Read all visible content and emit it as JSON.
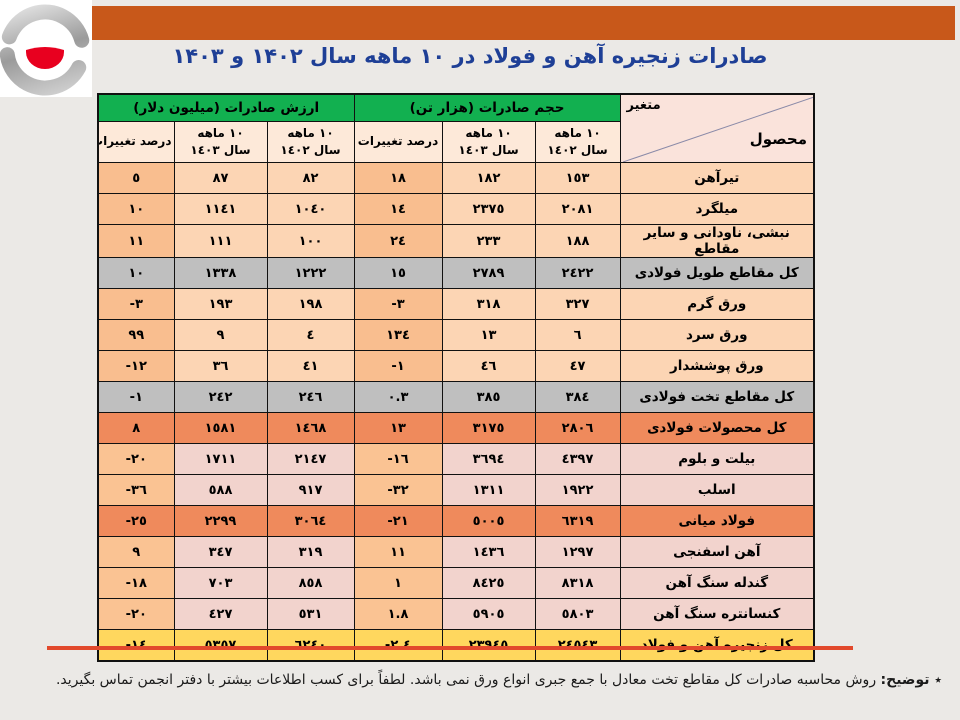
{
  "title": "صادرات زنجیره آهن و فولاد در ۱۰ ماهه سال ۱۴۰۲ و ۱۴۰۳",
  "table": {
    "corner": {
      "variable": "متغیر",
      "product": "محصول"
    },
    "groups": {
      "volume": "حجم صادرات (هزار تن)",
      "value": "ارزش صادرات (میلیون دلار)"
    },
    "subheaders": {
      "period": "١٠ ماهه",
      "y1402": "سال ١٤٠٢",
      "y1403": "سال ١٤٠٣",
      "pct": "درصد تغییرات"
    },
    "rows": [
      {
        "product": "تیرآهن",
        "style": "salmon",
        "v02": "١٥٣",
        "v03": "١٨٢",
        "vp": "١٨",
        "a02": "٨٢",
        "a03": "٨٧",
        "ap": "٥"
      },
      {
        "product": "میلگرد",
        "style": "salmon",
        "v02": "٢٠٨١",
        "v03": "٢٣٧٥",
        "vp": "١٤",
        "a02": "١٠٤٠",
        "a03": "١١٤١",
        "ap": "١٠"
      },
      {
        "product": "نبشی، ناودانی و سایر مقاطع",
        "style": "salmon",
        "v02": "١٨٨",
        "v03": "٢٣٣",
        "vp": "٢٤",
        "a02": "١٠٠",
        "a03": "١١١",
        "ap": "١١"
      },
      {
        "product": "کل مقاطع طویل فولادی",
        "style": "gray",
        "v02": "٢٤٢٢",
        "v03": "٢٧٨٩",
        "vp": "١٥",
        "a02": "١٢٢٢",
        "a03": "١٣٣٨",
        "ap": "١٠"
      },
      {
        "product": "ورق گرم",
        "style": "salmon",
        "v02": "٣٢٧",
        "v03": "٣١٨",
        "vp": "-٣",
        "a02": "١٩٨",
        "a03": "١٩٣",
        "ap": "-٣"
      },
      {
        "product": "ورق سرد",
        "style": "salmon",
        "v02": "٦",
        "v03": "١٣",
        "vp": "١٣٤",
        "a02": "٤",
        "a03": "٩",
        "ap": "٩٩"
      },
      {
        "product": "ورق پوششدار",
        "style": "salmon",
        "v02": "٤٧",
        "v03": "٤٦",
        "vp": "-١",
        "a02": "٤١",
        "a03": "٣٦",
        "ap": "-١٢"
      },
      {
        "product": "کل مقاطع تخت فولادی",
        "style": "gray",
        "v02": "٣٨٤",
        "v03": "٣٨٥",
        "vp": "٠.٣",
        "a02": "٢٤٦",
        "a03": "٢٤٢",
        "ap": "-١"
      },
      {
        "product": "کل محصولات فولادی",
        "style": "orange",
        "v02": "٢٨٠٦",
        "v03": "٣١٧٥",
        "vp": "١٣",
        "a02": "١٤٦٨",
        "a03": "١٥٨١",
        "ap": "٨"
      },
      {
        "product": "بیلت و بلوم",
        "style": "pink",
        "v02": "٤٣٩٧",
        "v03": "٣٦٩٤",
        "vp": "-١٦",
        "a02": "٢١٤٧",
        "a03": "١٧١١",
        "ap": "-٢٠"
      },
      {
        "product": "اسلب",
        "style": "pink",
        "v02": "١٩٢٢",
        "v03": "١٣١١",
        "vp": "-٣٢",
        "a02": "٩١٧",
        "a03": "٥٨٨",
        "ap": "-٣٦"
      },
      {
        "product": "فولاد میانی",
        "style": "orange",
        "v02": "٦٣١٩",
        "v03": "٥٠٠٥",
        "vp": "-٢١",
        "a02": "٣٠٦٤",
        "a03": "٢٢٩٩",
        "ap": "-٢٥"
      },
      {
        "product": "آهن اسفنجی",
        "style": "pink",
        "v02": "١٢٩٧",
        "v03": "١٤٣٦",
        "vp": "١١",
        "a02": "٣١٩",
        "a03": "٣٤٧",
        "ap": "٩"
      },
      {
        "product": "گندله سنگ آهن",
        "style": "pink",
        "v02": "٨٣١٨",
        "v03": "٨٤٢٥",
        "vp": "١",
        "a02": "٨٥٨",
        "a03": "٧٠٣",
        "ap": "-١٨"
      },
      {
        "product": "کنسانتره سنگ آهن",
        "style": "pink",
        "v02": "٥٨٠٣",
        "v03": "٥٩٠٥",
        "vp": "١.٨",
        "a02": "٥٣١",
        "a03": "٤٢٧",
        "ap": "-٢٠"
      },
      {
        "product": "کل زنجیره آهن و فولاد",
        "style": "yellow",
        "v02": "٢٤٥٤٣",
        "v03": "٢٣٩٤٥",
        "vp": "-٢.٤",
        "a02": "٦٢٤٠",
        "a03": "٥٣٥٧",
        "ap": "-١٤"
      }
    ]
  },
  "footnote": {
    "prefix": "٭ توضیح:",
    "body": " روش محاسبه صادرات کل مقاطع تخت معادل با جمع جبری انواع ورق نمی باشد. لطفاً برای کسب اطلاعات بیشتر با دفتر انجمن تماس بگیرید."
  },
  "colors": {
    "banner": "#c8581a",
    "title": "#1e3f96",
    "header_green": "#12b050",
    "subheader_cream": "#fde9d9",
    "row_salmon": "#fcd5b4",
    "row_salmon_pct": "#f9be8f",
    "row_pink": "#f2d3cd",
    "row_pink_pct": "#fac393",
    "row_gray": "#bfbfbf",
    "row_orange": "#ef8a5c",
    "row_total_yellow": "#ffd75e",
    "red_rule": "#e2492c",
    "logo_red": "#e8001f"
  }
}
